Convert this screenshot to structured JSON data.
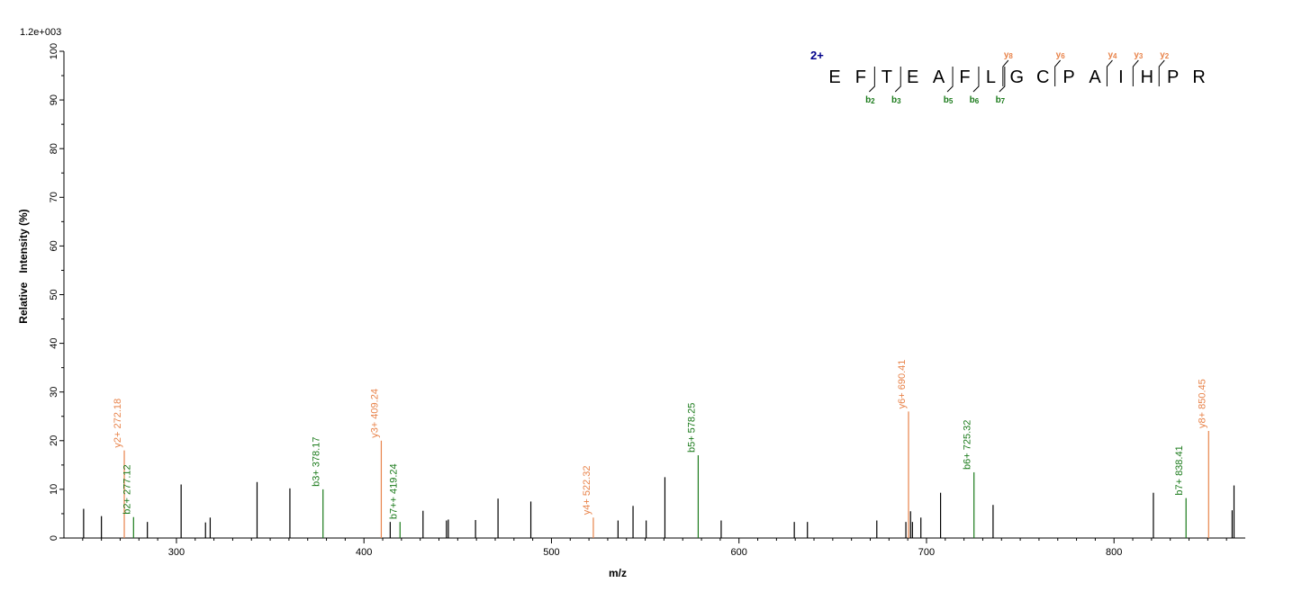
{
  "chart_data": {
    "type": "bar",
    "scale_label": "1.2e+003",
    "xlabel": "m/z",
    "ylabel": "Relative   Intensity (%)",
    "xlim": [
      240,
      870
    ],
    "ylim": [
      0,
      100
    ],
    "x_ticks": [
      300,
      400,
      500,
      600,
      700,
      800
    ],
    "y_ticks": [
      0,
      10,
      20,
      30,
      40,
      50,
      60,
      70,
      80,
      90,
      100
    ],
    "colors": {
      "unassigned": "#000000",
      "b_ion": "#1a7a1a",
      "y_ion": "#e8834a",
      "charge": "#00008b"
    },
    "peaks": [
      {
        "mz": 250.5,
        "intensity": 6,
        "kind": "none"
      },
      {
        "mz": 260.0,
        "intensity": 4.5,
        "kind": "none"
      },
      {
        "mz": 272.18,
        "intensity": 18,
        "kind": "y",
        "label": "y2+ 272.18"
      },
      {
        "mz": 277.12,
        "intensity": 4.3,
        "kind": "b",
        "label": "b2+ 277.12"
      },
      {
        "mz": 284.5,
        "intensity": 3.3,
        "kind": "none"
      },
      {
        "mz": 302.5,
        "intensity": 11,
        "kind": "none"
      },
      {
        "mz": 315.5,
        "intensity": 3.2,
        "kind": "none"
      },
      {
        "mz": 318.0,
        "intensity": 4.2,
        "kind": "none"
      },
      {
        "mz": 343.0,
        "intensity": 11.5,
        "kind": "none"
      },
      {
        "mz": 360.5,
        "intensity": 10.2,
        "kind": "none"
      },
      {
        "mz": 378.17,
        "intensity": 10,
        "kind": "b",
        "label": "b3+ 378.17"
      },
      {
        "mz": 409.24,
        "intensity": 20,
        "kind": "y",
        "label": "y3+ 409.24"
      },
      {
        "mz": 414.0,
        "intensity": 3.3,
        "kind": "none"
      },
      {
        "mz": 419.24,
        "intensity": 3.3,
        "kind": "b",
        "label": "b7++ 419.24"
      },
      {
        "mz": 431.5,
        "intensity": 5.6,
        "kind": "none"
      },
      {
        "mz": 444.0,
        "intensity": 3.6,
        "kind": "none"
      },
      {
        "mz": 445.0,
        "intensity": 3.8,
        "kind": "none"
      },
      {
        "mz": 459.5,
        "intensity": 3.7,
        "kind": "none"
      },
      {
        "mz": 471.5,
        "intensity": 8.1,
        "kind": "none"
      },
      {
        "mz": 489.0,
        "intensity": 7.5,
        "kind": "none"
      },
      {
        "mz": 522.32,
        "intensity": 4.2,
        "kind": "y",
        "label": "y4+ 522.32"
      },
      {
        "mz": 535.5,
        "intensity": 3.6,
        "kind": "none"
      },
      {
        "mz": 543.5,
        "intensity": 6.6,
        "kind": "none"
      },
      {
        "mz": 550.5,
        "intensity": 3.6,
        "kind": "none"
      },
      {
        "mz": 560.5,
        "intensity": 12.5,
        "kind": "none"
      },
      {
        "mz": 578.25,
        "intensity": 17,
        "kind": "b",
        "label": "b5+ 578.25"
      },
      {
        "mz": 590.5,
        "intensity": 3.6,
        "kind": "none"
      },
      {
        "mz": 629.5,
        "intensity": 3.3,
        "kind": "none"
      },
      {
        "mz": 636.5,
        "intensity": 3.3,
        "kind": "none"
      },
      {
        "mz": 673.5,
        "intensity": 3.6,
        "kind": "none"
      },
      {
        "mz": 689.0,
        "intensity": 3.3,
        "kind": "none"
      },
      {
        "mz": 690.41,
        "intensity": 26,
        "kind": "y",
        "label": "y6+ 690.41"
      },
      {
        "mz": 691.5,
        "intensity": 5.5,
        "kind": "none"
      },
      {
        "mz": 692.5,
        "intensity": 3.3,
        "kind": "none"
      },
      {
        "mz": 697.0,
        "intensity": 4.2,
        "kind": "none"
      },
      {
        "mz": 707.5,
        "intensity": 9.3,
        "kind": "none"
      },
      {
        "mz": 725.32,
        "intensity": 13.5,
        "kind": "b",
        "label": "b6+ 725.32"
      },
      {
        "mz": 735.5,
        "intensity": 6.8,
        "kind": "none"
      },
      {
        "mz": 821.0,
        "intensity": 9.3,
        "kind": "none"
      },
      {
        "mz": 838.41,
        "intensity": 8.2,
        "kind": "b",
        "label": "b7+ 838.41"
      },
      {
        "mz": 850.45,
        "intensity": 22,
        "kind": "y",
        "label": "y8+ 850.45"
      },
      {
        "mz": 863.0,
        "intensity": 5.7,
        "kind": "none"
      },
      {
        "mz": 864.0,
        "intensity": 10.8,
        "kind": "none"
      }
    ],
    "sequence": {
      "charge": "2+",
      "residues": [
        "E",
        "F",
        "T",
        "E",
        "A",
        "F",
        "L",
        "G",
        "C",
        "P",
        "A",
        "I",
        "H",
        "P",
        "R"
      ],
      "b_ions": [
        {
          "after": 2,
          "label": "b",
          "sub": "2"
        },
        {
          "after": 3,
          "label": "b",
          "sub": "3"
        },
        {
          "after": 5,
          "label": "b",
          "sub": "5"
        },
        {
          "after": 6,
          "label": "b",
          "sub": "6"
        },
        {
          "after": 7,
          "label": "b",
          "sub": "7"
        }
      ],
      "y_ions": [
        {
          "before": 7,
          "label": "y",
          "sub": "8"
        },
        {
          "before": 9,
          "label": "y",
          "sub": "6"
        },
        {
          "before": 11,
          "label": "y",
          "sub": "4"
        },
        {
          "before": 12,
          "label": "y",
          "sub": "3"
        },
        {
          "before": 13,
          "label": "y",
          "sub": "2"
        }
      ]
    }
  }
}
